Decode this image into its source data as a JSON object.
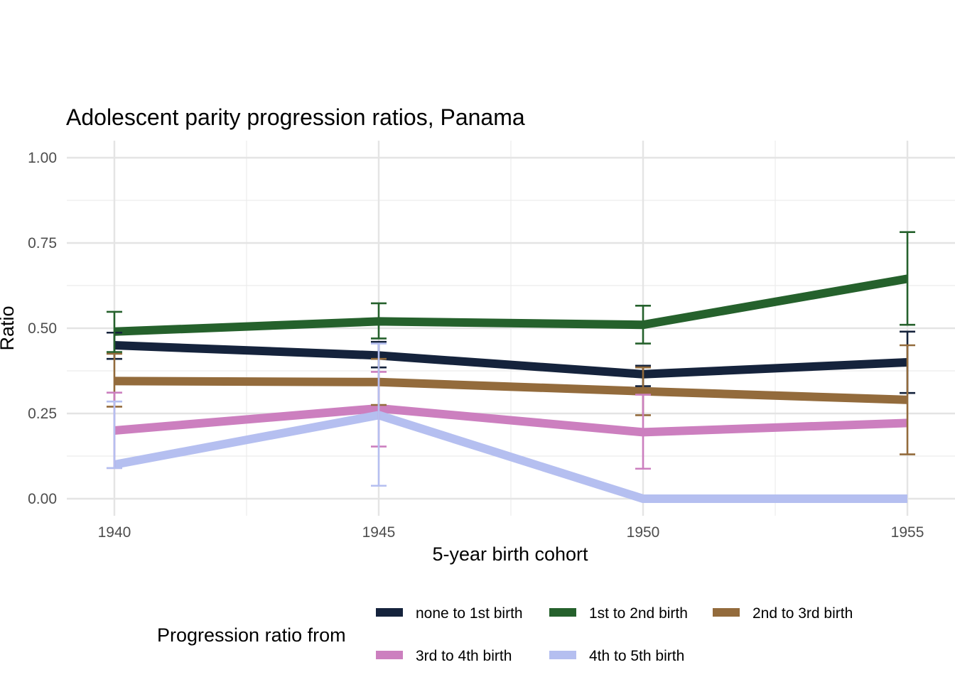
{
  "chart_data": {
    "type": "line",
    "title": "Adolescent parity progression ratios,  Panama",
    "xlabel": "5-year birth cohort",
    "ylabel": "Ratio",
    "x": [
      1940,
      1945,
      1950,
      1955
    ],
    "x_tick_labels": [
      "1940",
      "1945",
      "1950",
      "1955"
    ],
    "y_tick_labels": [
      "0.00",
      "0.25",
      "0.50",
      "0.75",
      "1.00"
    ],
    "xlim": [
      1939.1,
      1955.9
    ],
    "ylim": [
      -0.05,
      1.05
    ],
    "grid": true,
    "legend_title": "Progression ratio from",
    "legend_position": "bottom",
    "series": [
      {
        "name": "none to 1st birth",
        "color": "#15233c",
        "values": [
          0.45,
          0.42,
          0.365,
          0.4
        ],
        "lower": [
          0.41,
          0.385,
          0.33,
          0.31
        ],
        "upper": [
          0.487,
          0.46,
          0.39,
          0.49
        ]
      },
      {
        "name": "1st to 2nd birth",
        "color": "#25612c",
        "values": [
          0.49,
          0.52,
          0.51,
          0.645
        ],
        "lower": [
          0.43,
          0.47,
          0.455,
          0.51
        ],
        "upper": [
          0.548,
          0.573,
          0.566,
          0.782
        ]
      },
      {
        "name": "2nd to 3rd birth",
        "color": "#936b3c",
        "values": [
          0.345,
          0.342,
          0.315,
          0.29
        ],
        "lower": [
          0.27,
          0.275,
          0.245,
          0.13
        ],
        "upper": [
          0.425,
          0.41,
          0.385,
          0.45
        ]
      },
      {
        "name": "3rd to 4th birth",
        "color": "#cc7fbf",
        "values": [
          0.2,
          0.265,
          0.195,
          0.222
        ],
        "lower": [
          0.09,
          0.153,
          0.088,
          0.222
        ],
        "upper": [
          0.311,
          0.372,
          0.305,
          0.222
        ]
      },
      {
        "name": "4th to 5th birth",
        "color": "#b5bff0",
        "values": [
          0.1,
          0.245,
          0.0,
          0.0
        ],
        "lower": [
          0.09,
          0.038,
          0.0,
          0.0
        ],
        "upper": [
          0.285,
          0.455,
          0.0,
          0.0
        ]
      }
    ]
  }
}
